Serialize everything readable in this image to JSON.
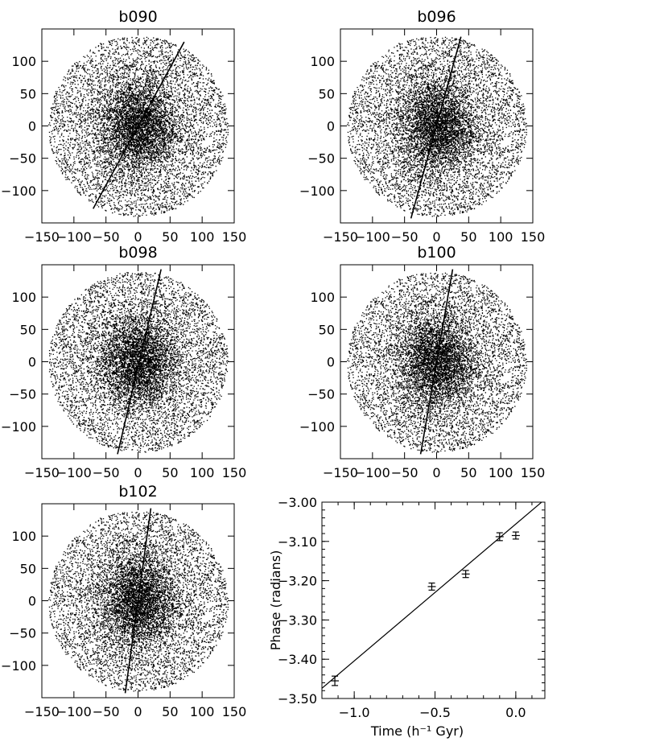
{
  "figure": {
    "scatter_tick_labels": [
      "-150",
      "-100",
      "-50",
      "0",
      "50",
      "100",
      "150"
    ]
  },
  "chart_data": [
    {
      "type": "scatter",
      "title": "b090",
      "description_of_content": "dense cloud of particle positions with a straight line through the center",
      "xlim": [
        -150,
        150
      ],
      "ylim": [
        -150,
        150
      ],
      "xticks": [
        -150,
        -100,
        -50,
        0,
        50,
        100,
        150
      ],
      "yticks": [
        -100,
        -50,
        0,
        50,
        100
      ],
      "line": {
        "x": [
          -70,
          72
        ],
        "y": [
          -128,
          130
        ]
      }
    },
    {
      "type": "scatter",
      "title": "b096",
      "xlim": [
        -150,
        150
      ],
      "ylim": [
        -150,
        150
      ],
      "xticks": [
        -150,
        -100,
        -50,
        0,
        50,
        100,
        150
      ],
      "yticks": [
        -100,
        -50,
        0,
        50,
        100
      ],
      "line": {
        "x": [
          -40,
          38
        ],
        "y": [
          -143,
          138
        ]
      }
    },
    {
      "type": "scatter",
      "title": "b098",
      "xlim": [
        -150,
        150
      ],
      "ylim": [
        -150,
        150
      ],
      "xticks": [
        -150,
        -100,
        -50,
        0,
        50,
        100,
        150
      ],
      "yticks": [
        -100,
        -50,
        0,
        50,
        100
      ],
      "line": {
        "x": [
          -32,
          36
        ],
        "y": [
          -143,
          143
        ]
      }
    },
    {
      "type": "scatter",
      "title": "b100",
      "xlim": [
        -150,
        150
      ],
      "ylim": [
        -150,
        150
      ],
      "xticks": [
        -150,
        -100,
        -50,
        0,
        50,
        100,
        150
      ],
      "yticks": [
        -100,
        -50,
        0,
        50,
        100
      ],
      "line": {
        "x": [
          -25,
          25
        ],
        "y": [
          -143,
          143
        ]
      }
    },
    {
      "type": "scatter",
      "title": "b102",
      "xlim": [
        -150,
        150
      ],
      "ylim": [
        -150,
        150
      ],
      "xticks": [
        -150,
        -100,
        -50,
        0,
        50,
        100,
        150
      ],
      "yticks": [
        -100,
        -50,
        0,
        50,
        100
      ],
      "line": {
        "x": [
          -20,
          20
        ],
        "y": [
          -143,
          143
        ]
      }
    },
    {
      "type": "scatter",
      "title": "",
      "xlabel": "Time (h⁻¹ Gyr)",
      "ylabel": "Phase (radians)",
      "xlim": [
        -1.2,
        0.18
      ],
      "ylim": [
        -3.5,
        -3.0
      ],
      "xticks": [
        -1.0,
        -0.5,
        0.0
      ],
      "xtick_labels": [
        "−1.0",
        "−0.5",
        "0.0"
      ],
      "yticks": [
        -3.5,
        -3.4,
        -3.3,
        -3.2,
        -3.1,
        -3.0
      ],
      "ytick_labels": [
        "−3.50",
        "−3.40",
        "−3.30",
        "−3.20",
        "−3.10",
        "−3.00"
      ],
      "points": [
        {
          "x": -1.12,
          "y": -3.455,
          "err": 0.012
        },
        {
          "x": -0.52,
          "y": -3.215,
          "err": 0.009
        },
        {
          "x": -0.31,
          "y": -3.183,
          "err": 0.009
        },
        {
          "x": -0.1,
          "y": -3.088,
          "err": 0.01
        },
        {
          "x": 0.0,
          "y": -3.085,
          "err": 0.009
        }
      ],
      "fit_line": {
        "x": [
          -1.2,
          0.18
        ],
        "y": [
          -3.474,
          -2.993
        ]
      }
    }
  ]
}
